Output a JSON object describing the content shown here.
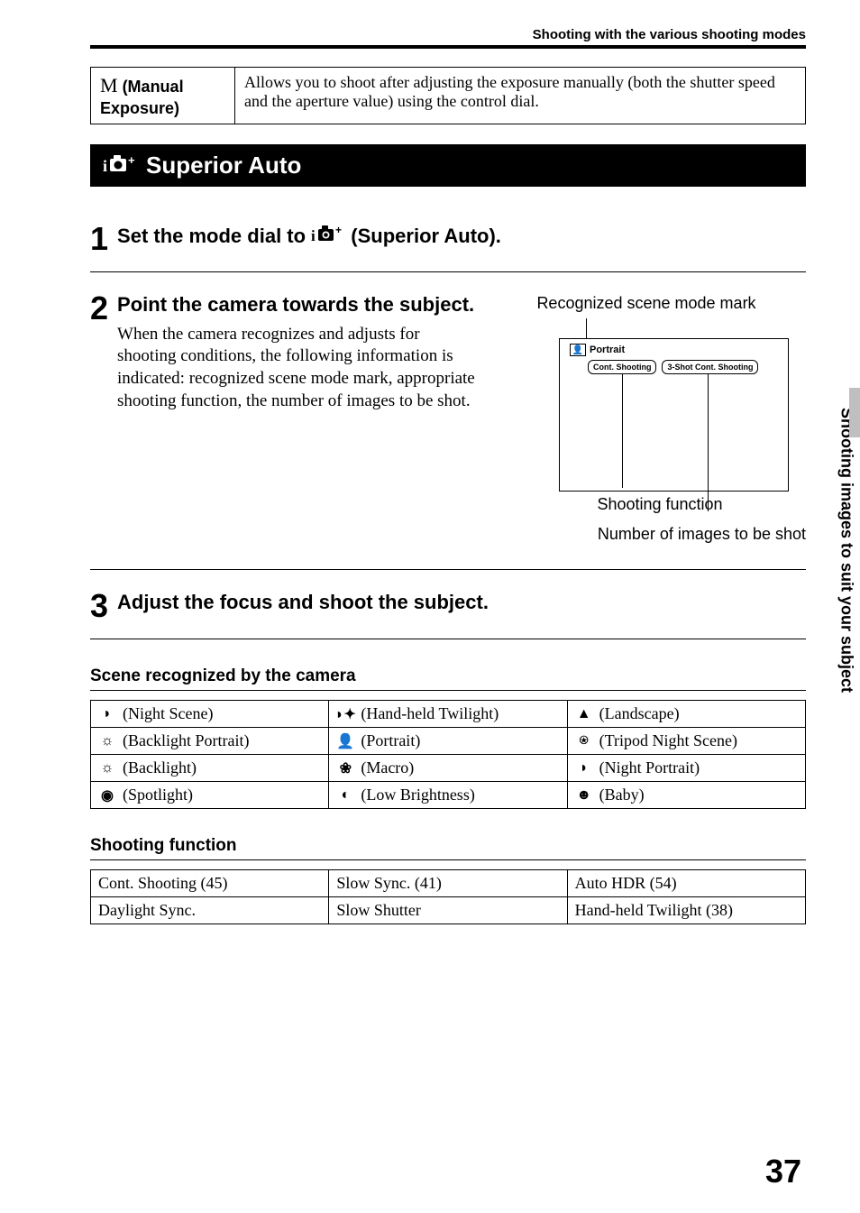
{
  "header": "Shooting with the various shooting modes",
  "mode_row": {
    "symbol": "M",
    "label": " (Manual Exposure)",
    "desc": "Allows you to shoot after adjusting the exposure manually (both the shutter speed and the aperture value) using the control dial."
  },
  "section_title": "Superior Auto",
  "step1": {
    "num": "1",
    "prefix": "Set the mode dial to ",
    "suffix": " (Superior Auto)."
  },
  "step2": {
    "num": "2",
    "title": "Point the camera towards the subject.",
    "desc": "When the camera recognizes and adjusts for shooting conditions, the following information is indicated: recognized scene mode mark, appropriate shooting function, the number of images to be shot.",
    "label_top": "Recognized scene mode mark",
    "portrait_label": "Portrait",
    "chip1": "Cont. Shooting",
    "chip2": "3-Shot Cont. Shooting",
    "label_func": "Shooting function",
    "label_num": "Number of images to be shot"
  },
  "step3": {
    "num": "3",
    "title": "Adjust the focus and shoot the subject."
  },
  "scenes_heading": "Scene recognized by the camera",
  "scenes": [
    [
      {
        "g": "◗",
        "t": "(Night Scene)"
      },
      {
        "g": "◗✦",
        "t": "(Hand-held Twilight)"
      },
      {
        "g": "▲",
        "t": "(Landscape)"
      }
    ],
    [
      {
        "g": "☼",
        "t": "(Backlight Portrait)"
      },
      {
        "g": "👤",
        "t": "(Portrait)"
      },
      {
        "g": "⍟",
        "t": "(Tripod Night Scene)"
      }
    ],
    [
      {
        "g": "☼",
        "t": "(Backlight)"
      },
      {
        "g": "❀",
        "t": "(Macro)"
      },
      {
        "g": "◗",
        "t": "(Night Portrait)"
      }
    ],
    [
      {
        "g": "◉",
        "t": "(Spotlight)"
      },
      {
        "g": "◐",
        "t": "(Low Brightness)"
      },
      {
        "g": "☻",
        "t": "(Baby)"
      }
    ]
  ],
  "func_heading": "Shooting function",
  "funcs": [
    [
      "Cont. Shooting (45)",
      "Slow Sync. (41)",
      "Auto HDR (54)"
    ],
    [
      "Daylight Sync.",
      "Slow Shutter",
      "Hand-held Twilight (38)"
    ]
  ],
  "side_tab": "Shooting images to suit your subject",
  "page_num": "37"
}
